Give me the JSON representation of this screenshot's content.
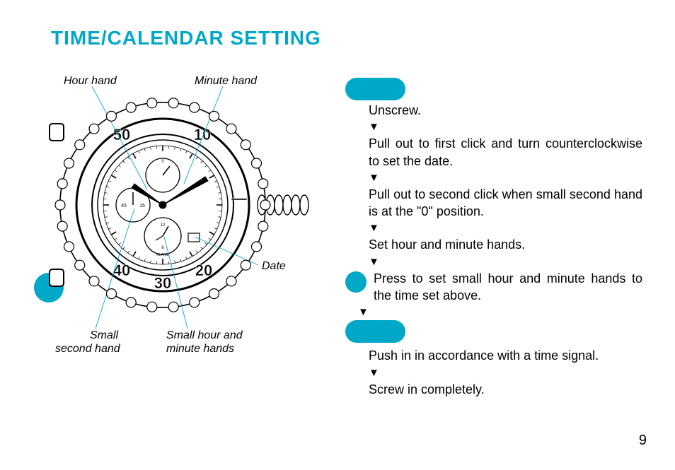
{
  "colors": {
    "accent": "#00a8c8",
    "text": "#000000",
    "bg": "#ffffff"
  },
  "title": "TIME/CALENDAR SETTING",
  "diagram": {
    "labels": {
      "hour_hand": "Hour hand",
      "minute_hand": "Minute hand",
      "date": "Date",
      "small_second_hand_l1": "Small",
      "small_second_hand_l2": "second hand",
      "small_hm_l1": "Small hour and",
      "small_hm_l2": "minute hands"
    }
  },
  "steps": {
    "s1": "Unscrew.",
    "s2": "Pull out to first click and turn counter­clockwise to set the date.",
    "s3": "Pull out to second click when small second hand is at the \"0\" position.",
    "s4": "Set hour and minute hands.",
    "s5": "Press to set small hour and minute hands to the time set above.",
    "s6": "Push in in accordance with a time signal.",
    "s7": "Screw in completely."
  },
  "page_number": "9",
  "arrow_glyph": "▼"
}
